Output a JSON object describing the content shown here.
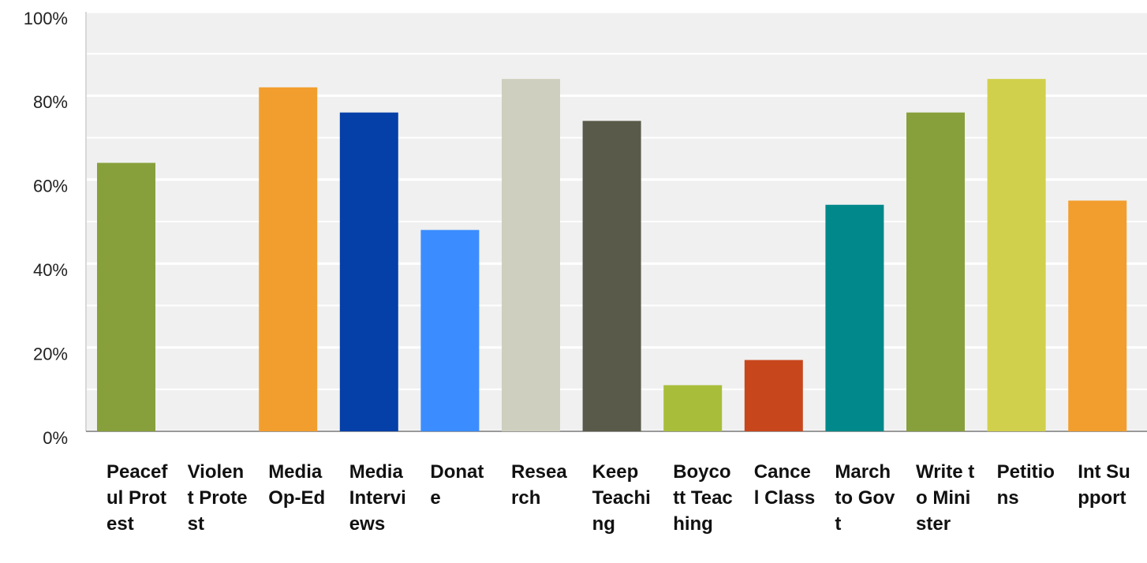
{
  "chart_data": {
    "type": "bar",
    "categories": [
      "Peaceful Protest",
      "Violent Protest",
      "Media Op-Ed",
      "Media Interviews",
      "Donate",
      "Research",
      "Keep Teaching",
      "Boycott Teaching",
      "Cancel Class",
      "March to Govt",
      "Write to Minister",
      "Petitions",
      "Int Support"
    ],
    "values": [
      64,
      0,
      82,
      76,
      48,
      84,
      74,
      11,
      17,
      54,
      76,
      84,
      55
    ],
    "colors": [
      "#87a03c",
      "#87a03c",
      "#f29e2e",
      "#0540a8",
      "#3b8cff",
      "#cfcfbf",
      "#5a5a4a",
      "#a8bd3a",
      "#c8461c",
      "#00888a",
      "#87a03c",
      "#d1d04c",
      "#f29e2e"
    ],
    "ylim": [
      0,
      100
    ],
    "yticks": [
      {
        "value": 0,
        "label": "0%"
      },
      {
        "value": 20,
        "label": "20%"
      },
      {
        "value": 40,
        "label": "40%"
      },
      {
        "value": 60,
        "label": "60%"
      },
      {
        "value": 80,
        "label": "80%"
      },
      {
        "value": 100,
        "label": "100%"
      }
    ],
    "minor_yticks": [
      10,
      30,
      50,
      70,
      90
    ],
    "grid": true
  }
}
